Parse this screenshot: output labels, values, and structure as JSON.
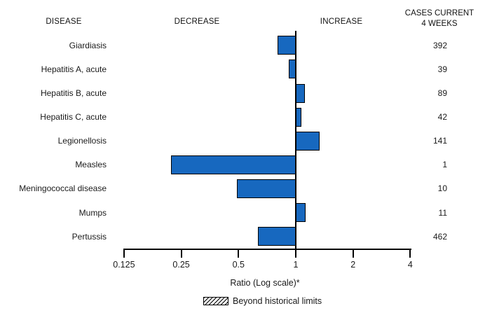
{
  "header": {
    "disease": "DISEASE",
    "decrease": "DECREASE",
    "increase": "INCREASE",
    "cases_line1": "CASES CURRENT",
    "cases_line2": "4 WEEKS"
  },
  "chart_data": {
    "type": "bar",
    "orientation": "horizontal",
    "scale": "log2",
    "baseline_ratio": 1,
    "xlim": [
      0.125,
      4
    ],
    "x_ticks": [
      0.125,
      0.25,
      0.5,
      1,
      2,
      4
    ],
    "x_tick_labels": [
      "0.125",
      "0.25",
      "0.5",
      "1",
      "2",
      "4"
    ],
    "xlabel": "Ratio (Log scale)*",
    "legend": {
      "label": "Beyond historical limits",
      "style": "hatched"
    },
    "rows": [
      {
        "disease": "Giardiasis",
        "ratio": 0.8,
        "cases": "392",
        "beyond_historical_limits": false
      },
      {
        "disease": "Hepatitis A, acute",
        "ratio": 0.92,
        "cases": "39",
        "beyond_historical_limits": false
      },
      {
        "disease": "Hepatitis B, acute",
        "ratio": 1.12,
        "cases": "89",
        "beyond_historical_limits": false
      },
      {
        "disease": "Hepatitis C, acute",
        "ratio": 1.07,
        "cases": "42",
        "beyond_historical_limits": false
      },
      {
        "disease": "Legionellosis",
        "ratio": 1.34,
        "cases": "141",
        "beyond_historical_limits": false
      },
      {
        "disease": "Measles",
        "ratio": 0.22,
        "cases": "1",
        "beyond_historical_limits": false
      },
      {
        "disease": "Meningococcal disease",
        "ratio": 0.49,
        "cases": "10",
        "beyond_historical_limits": false
      },
      {
        "disease": "Mumps",
        "ratio": 1.13,
        "cases": "11",
        "beyond_historical_limits": false
      },
      {
        "disease": "Pertussis",
        "ratio": 0.63,
        "cases": "462",
        "beyond_historical_limits": false
      }
    ],
    "colors": {
      "bar_fill": "#1768bf",
      "bar_border": "#000000",
      "axis": "#000000",
      "text": "#1a1a1a"
    }
  }
}
